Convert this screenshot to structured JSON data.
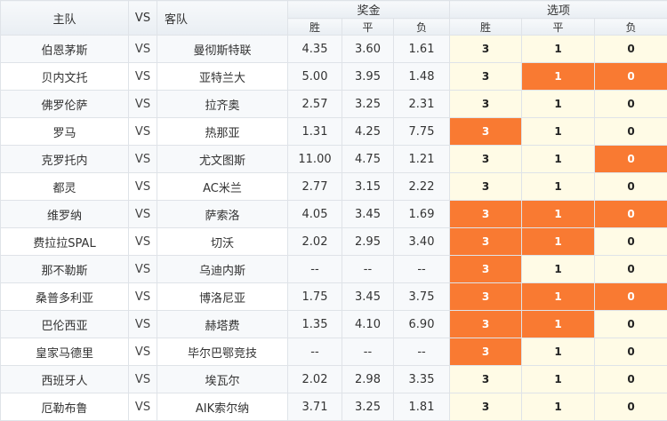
{
  "header": {
    "home": "主队",
    "vs": "VS",
    "away": "客队",
    "odds_group": "奖金",
    "pick_group": "选项",
    "win": "胜",
    "draw": "平",
    "lose": "负"
  },
  "colors": {
    "selected": "#f97a32",
    "pick_bg": "#fffbe6"
  },
  "rows": [
    {
      "home": "伯恩茅斯",
      "vs": "VS",
      "away": "曼彻斯特联",
      "w": "4.35",
      "d": "3.60",
      "l": "1.61",
      "pw": "3",
      "pd": "1",
      "pl": "0",
      "sel": []
    },
    {
      "home": "贝内文托",
      "vs": "VS",
      "away": "亚特兰大",
      "w": "5.00",
      "d": "3.95",
      "l": "1.48",
      "pw": "3",
      "pd": "1",
      "pl": "0",
      "sel": [
        "d",
        "l"
      ]
    },
    {
      "home": "佛罗伦萨",
      "vs": "VS",
      "away": "拉齐奥",
      "w": "2.57",
      "d": "3.25",
      "l": "2.31",
      "pw": "3",
      "pd": "1",
      "pl": "0",
      "sel": []
    },
    {
      "home": "罗马",
      "vs": "VS",
      "away": "热那亚",
      "w": "1.31",
      "d": "4.25",
      "l": "7.75",
      "pw": "3",
      "pd": "1",
      "pl": "0",
      "sel": [
        "w"
      ]
    },
    {
      "home": "克罗托内",
      "vs": "VS",
      "away": "尤文图斯",
      "w": "11.00",
      "d": "4.75",
      "l": "1.21",
      "pw": "3",
      "pd": "1",
      "pl": "0",
      "sel": [
        "l"
      ]
    },
    {
      "home": "都灵",
      "vs": "VS",
      "away": "AC米兰",
      "w": "2.77",
      "d": "3.15",
      "l": "2.22",
      "pw": "3",
      "pd": "1",
      "pl": "0",
      "sel": []
    },
    {
      "home": "维罗纳",
      "vs": "VS",
      "away": "萨索洛",
      "w": "4.05",
      "d": "3.45",
      "l": "1.69",
      "pw": "3",
      "pd": "1",
      "pl": "0",
      "sel": [
        "w",
        "d",
        "l"
      ]
    },
    {
      "home": "费拉拉SPAL",
      "vs": "VS",
      "away": "切沃",
      "w": "2.02",
      "d": "2.95",
      "l": "3.40",
      "pw": "3",
      "pd": "1",
      "pl": "0",
      "sel": [
        "w",
        "d"
      ]
    },
    {
      "home": "那不勒斯",
      "vs": "VS",
      "away": "乌迪内斯",
      "w": "--",
      "d": "--",
      "l": "--",
      "pw": "3",
      "pd": "1",
      "pl": "0",
      "sel": [
        "w"
      ]
    },
    {
      "home": "桑普多利亚",
      "vs": "VS",
      "away": "博洛尼亚",
      "w": "1.75",
      "d": "3.45",
      "l": "3.75",
      "pw": "3",
      "pd": "1",
      "pl": "0",
      "sel": [
        "w",
        "d",
        "l"
      ]
    },
    {
      "home": "巴伦西亚",
      "vs": "VS",
      "away": "赫塔费",
      "w": "1.35",
      "d": "4.10",
      "l": "6.90",
      "pw": "3",
      "pd": "1",
      "pl": "0",
      "sel": [
        "w",
        "d"
      ]
    },
    {
      "home": "皇家马德里",
      "vs": "VS",
      "away": "毕尔巴鄂竞技",
      "w": "--",
      "d": "--",
      "l": "--",
      "pw": "3",
      "pd": "1",
      "pl": "0",
      "sel": [
        "w"
      ]
    },
    {
      "home": "西班牙人",
      "vs": "VS",
      "away": "埃瓦尔",
      "w": "2.02",
      "d": "2.98",
      "l": "3.35",
      "pw": "3",
      "pd": "1",
      "pl": "0",
      "sel": []
    },
    {
      "home": "厄勒布鲁",
      "vs": "VS",
      "away": "AIK索尔纳",
      "w": "3.71",
      "d": "3.25",
      "l": "1.81",
      "pw": "3",
      "pd": "1",
      "pl": "0",
      "sel": []
    }
  ]
}
